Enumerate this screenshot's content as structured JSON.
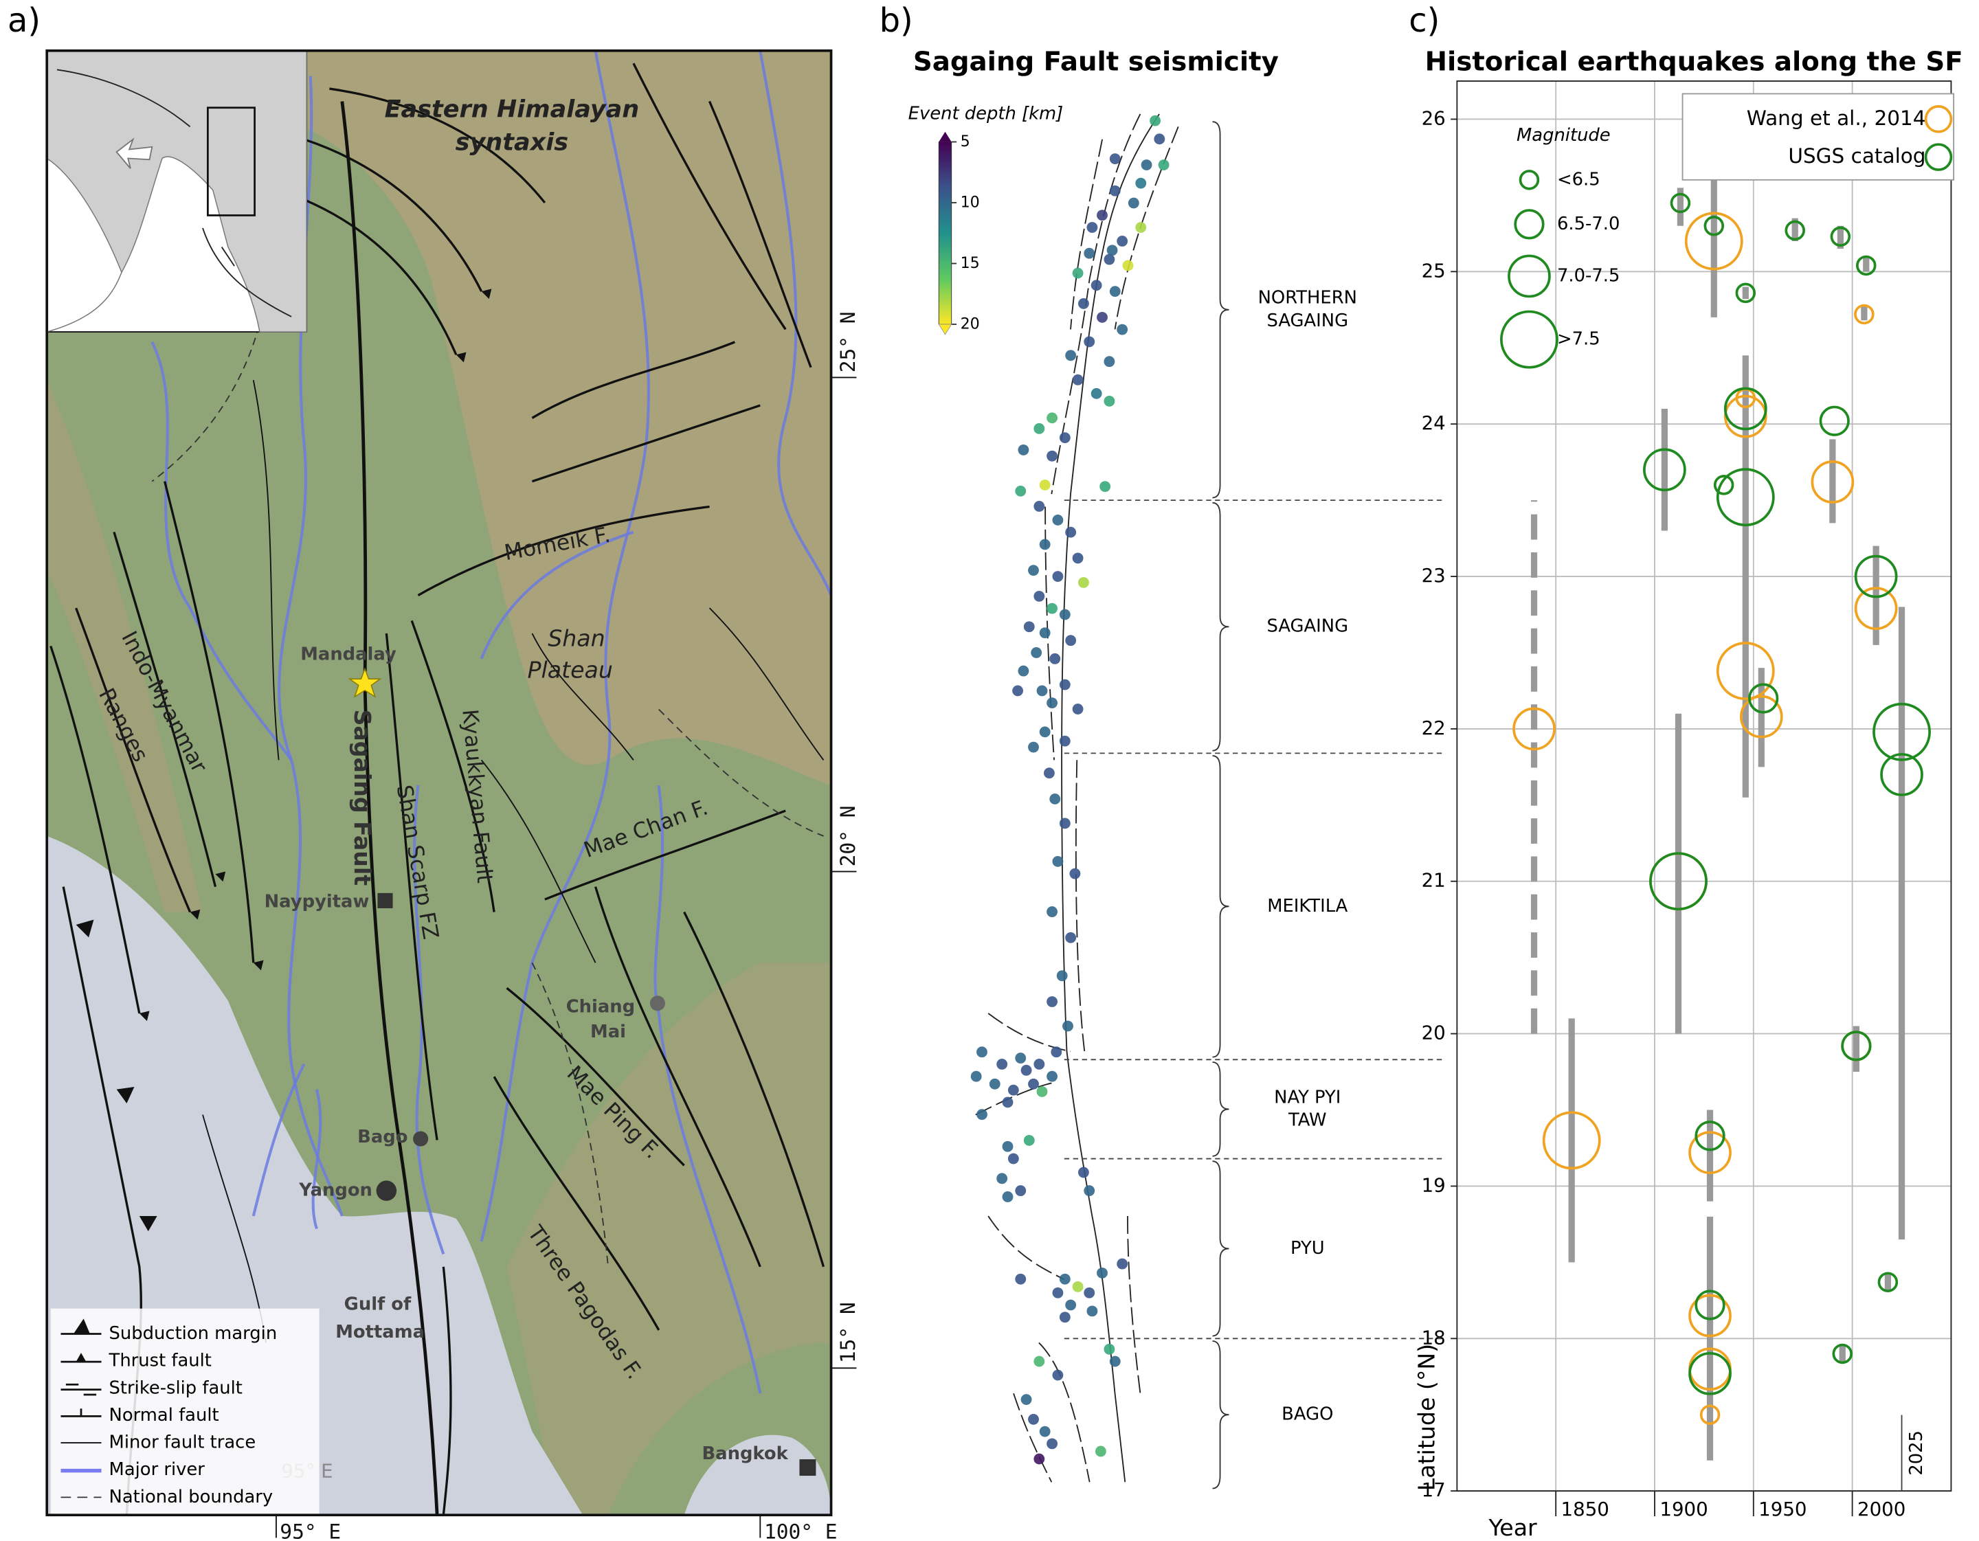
{
  "map": {
    "panel_label": "a)",
    "labels": {
      "syntaxis": [
        "Eastern Himalayan",
        "syntaxis"
      ],
      "momeik": "Momeik F.",
      "shan_plateau": [
        "Shan",
        "Plateau"
      ],
      "mandalay": "Mandalay",
      "sagaing_fault": "Sagaing Fault",
      "shan_scarp": "Shan Scarp FZ",
      "kyaukkyan": "Kyaukkyan Fault",
      "indo_myanmar": [
        "Indo-Myanmar",
        "Ranges"
      ],
      "mae_chan": "Mae Chan F.",
      "naypyitaw": "Naypyitaw",
      "chiang_mai": [
        "Chiang",
        "Mai"
      ],
      "mae_ping": "Mae Ping F.",
      "bago": "Bago",
      "yangon": "Yangon",
      "gulf": [
        "Gulf of",
        "Mottama"
      ],
      "three_pagodas": "Three Pagodas F.",
      "bangkok": "Bangkok",
      "inset_lon": "95° E"
    },
    "coords": {
      "lat": [
        "25° N",
        "20° N",
        "15° N"
      ],
      "lon": [
        "95° E",
        "100° E"
      ]
    },
    "legend": [
      "Subduction margin",
      "Thrust fault",
      "Strike-slip fault",
      "Normal fault",
      "Minor fault trace",
      "Major river",
      "National boundary"
    ]
  },
  "chart_data": [
    {
      "type": "scatter",
      "panel_label": "b)",
      "title": "Sagaing Fault seismicity",
      "xlim": [
        95.13,
        96.9
      ],
      "ylim": [
        17,
        26.25
      ],
      "x": [
        96.65,
        96.68,
        96.59,
        96.71,
        96.37,
        96.5,
        96.28,
        96.55,
        96.42,
        96.19,
        96.33,
        96.46,
        96.11,
        96.24,
        96.37,
        96.15,
        96.28,
        96.42,
        96.19,
        96.33,
        96.11,
        96.24,
        96.33,
        95.93,
        95.84,
        95.73,
        95.93,
        95.88,
        95.71,
        96.3,
        96.02,
        96.06,
        96.37,
        96.55,
        96.21,
        96.35,
        95.84,
        95.97,
        96.06,
        95.88,
        96.11,
        95.8,
        95.97,
        96.15,
        95.84,
        95.93,
        96.02,
        95.77,
        95.88,
        96.06,
        95.82,
        95.95,
        95.73,
        96.02,
        95.86,
        95.69,
        95.93,
        96.11,
        95.88,
        96.02,
        95.8,
        95.91,
        95.95,
        96.02,
        95.97,
        96.09,
        95.93,
        96.06,
        96.0,
        95.93,
        96.04,
        95.96,
        95.44,
        95.58,
        95.71,
        95.84,
        95.53,
        95.66,
        95.4,
        95.8,
        95.93,
        95.62,
        95.44,
        95.86,
        95.75,
        95.62,
        95.77,
        95.66,
        95.58,
        95.71,
        95.62,
        96.15,
        96.19,
        96.42,
        96.02,
        96.11,
        96.19,
        96.06,
        95.97,
        96.21,
        95.71,
        96.28,
        96.02,
        96.33,
        96.37,
        95.84,
        95.97,
        95.75,
        95.8,
        95.88,
        95.93,
        95.84,
        96.27
      ],
      "values": [
        25.99,
        25.87,
        25.7,
        25.7,
        25.53,
        25.45,
        25.37,
        25.29,
        25.2,
        25.12,
        25.08,
        25.04,
        24.99,
        24.91,
        24.87,
        24.79,
        24.7,
        24.62,
        24.54,
        24.41,
        24.29,
        24.2,
        24.15,
        24.04,
        23.97,
        23.83,
        23.79,
        23.6,
        23.56,
        23.59,
        23.91,
        24.45,
        25.74,
        25.58,
        25.29,
        25.14,
        23.46,
        23.37,
        23.29,
        23.21,
        23.12,
        23.04,
        23.0,
        22.96,
        22.87,
        22.79,
        22.75,
        22.67,
        22.63,
        22.58,
        22.5,
        22.46,
        22.38,
        22.29,
        22.25,
        22.25,
        22.17,
        22.13,
        21.98,
        21.92,
        21.88,
        21.71,
        21.54,
        21.38,
        21.13,
        21.05,
        20.8,
        20.63,
        20.38,
        20.21,
        20.05,
        19.88,
        19.88,
        19.8,
        19.84,
        19.8,
        19.67,
        19.63,
        19.72,
        19.67,
        19.72,
        19.55,
        19.47,
        19.62,
        19.76,
        19.26,
        19.3,
        19.18,
        19.05,
        18.97,
        18.93,
        19.09,
        18.97,
        18.49,
        18.39,
        18.34,
        18.3,
        18.22,
        18.3,
        18.18,
        18.39,
        18.43,
        18.14,
        17.93,
        17.85,
        17.85,
        17.76,
        17.6,
        17.47,
        17.39,
        17.31,
        17.21,
        17.26
      ],
      "depth": [
        14,
        9,
        10,
        14,
        9,
        10,
        8,
        18,
        9,
        10,
        9,
        19,
        14,
        9,
        10,
        9,
        8,
        10,
        9,
        10,
        9,
        11,
        14,
        15,
        14,
        10,
        9,
        19,
        14,
        14,
        9,
        10,
        9,
        11,
        9,
        10,
        9,
        10,
        9,
        10,
        9,
        10,
        9,
        18,
        9,
        14,
        10,
        9,
        10,
        9,
        10,
        9,
        10,
        9,
        10,
        9,
        10,
        9,
        10,
        9,
        10,
        9,
        10,
        9,
        10,
        9,
        10,
        9,
        10,
        9,
        10,
        9,
        10,
        9,
        10,
        9,
        10,
        9,
        10,
        9,
        10,
        9,
        10,
        15,
        9,
        10,
        14,
        9,
        10,
        9,
        10,
        9,
        10,
        9,
        10,
        18,
        9,
        10,
        9,
        10,
        9,
        10,
        9,
        14,
        10,
        15,
        9,
        10,
        9,
        10,
        9,
        6,
        15
      ],
      "colorbar": {
        "label": "Event depth [km]",
        "lim": [
          5,
          20
        ],
        "ticks": [
          5,
          10,
          15,
          20
        ]
      },
      "segments": {
        "names": [
          [
            "NORTHERN",
            "SAGAING"
          ],
          [
            "SAGAING"
          ],
          [
            "MEIKTILA"
          ],
          [
            "NAY PYI",
            "TAW"
          ],
          [
            "PYU"
          ],
          [
            "BAGO"
          ]
        ],
        "edges": [
          26.0,
          23.5,
          21.84,
          19.83,
          19.18,
          18.0,
          17.0
        ]
      }
    },
    {
      "type": "scatter",
      "panel_label": "c)",
      "title": "Historical earthquakes along the SF",
      "xlabel": "Year",
      "ylabel": "Latitude (°N)",
      "xlim": [
        1800,
        2050
      ],
      "ylim": [
        17,
        26.25
      ],
      "xticks": [
        1850,
        1900,
        1950,
        2000
      ],
      "yticks": [
        17,
        18,
        19,
        20,
        21,
        22,
        23,
        24,
        25,
        26
      ],
      "grid": true,
      "legend": "upper right",
      "vline_x": 2025,
      "size_legend": {
        "title": "Magnitude",
        "labels": [
          "<6.5",
          "6.5-7.0",
          "7.0-7.5",
          ">7.5"
        ]
      },
      "series": [
        {
          "name": "Wang et al., 2014",
          "color": "#f0a320",
          "x": [
            1839,
            1858,
            1912,
            1928,
            1928,
            1928,
            1928,
            1930,
            1946,
            1946,
            1946,
            1954,
            1990,
            2006,
            2012,
            2002
          ],
          "values": [
            22.0,
            19.3,
            21.0,
            19.22,
            18.15,
            17.8,
            17.5,
            25.2,
            24.05,
            24.17,
            22.38,
            22.08,
            23.62,
            24.72,
            22.79,
            19.92
          ],
          "size_class": [
            2,
            3,
            3,
            2,
            2,
            2,
            0,
            3,
            2,
            0,
            3,
            2,
            2,
            0,
            2,
            1
          ],
          "lat_range": [
            [
              20.0,
              23.5
            ],
            [
              18.5,
              20.1
            ],
            [
              20.0,
              22.1
            ],
            [
              18.9,
              19.5
            ],
            [
              17.2,
              18.8
            ],
            null,
            null,
            [
              24.7,
              26.1
            ],
            [
              21.55,
              24.45
            ],
            null,
            null,
            [
              21.75,
              22.4
            ],
            [
              23.35,
              23.9
            ],
            [
              24.68,
              24.78
            ],
            [
              22.55,
              23.2
            ],
            [
              19.75,
              20.05
            ]
          ],
          "range_dashed": [
            true,
            false,
            false,
            false,
            false,
            false,
            false,
            false,
            false,
            false,
            false,
            false,
            false,
            false,
            false,
            false
          ]
        },
        {
          "name": "USGS catalog",
          "color": "#1f8a1f",
          "x": [
            1913,
            1930,
            1946,
            1971,
            1994,
            2007,
            1905,
            1946,
            1935,
            1946,
            1991,
            2012,
            1955,
            2025,
            2025,
            1912,
            2002,
            1928,
            1928,
            1928,
            2018,
            1995
          ],
          "values": [
            25.45,
            25.3,
            24.86,
            25.27,
            25.23,
            25.04,
            23.7,
            24.1,
            23.6,
            23.52,
            24.02,
            23.0,
            22.2,
            21.98,
            21.7,
            21.0,
            19.92,
            19.33,
            18.22,
            17.77,
            18.37,
            17.9
          ],
          "size_class": [
            0,
            0,
            0,
            0,
            0,
            0,
            2,
            2,
            0,
            3,
            1,
            2,
            1,
            3,
            2,
            3,
            1,
            1,
            1,
            2,
            0,
            0
          ],
          "lat_range": [
            [
              25.3,
              25.55
            ],
            null,
            [
              24.82,
              24.9
            ],
            [
              25.2,
              25.35
            ],
            [
              25.15,
              25.3
            ],
            [
              25.0,
              25.1
            ],
            [
              23.3,
              24.1
            ],
            null,
            null,
            null,
            null,
            null,
            null,
            [
              18.65,
              22.8
            ],
            null,
            null,
            null,
            null,
            null,
            null,
            [
              18.32,
              18.42
            ],
            [
              17.85,
              17.95
            ]
          ]
        }
      ]
    }
  ]
}
